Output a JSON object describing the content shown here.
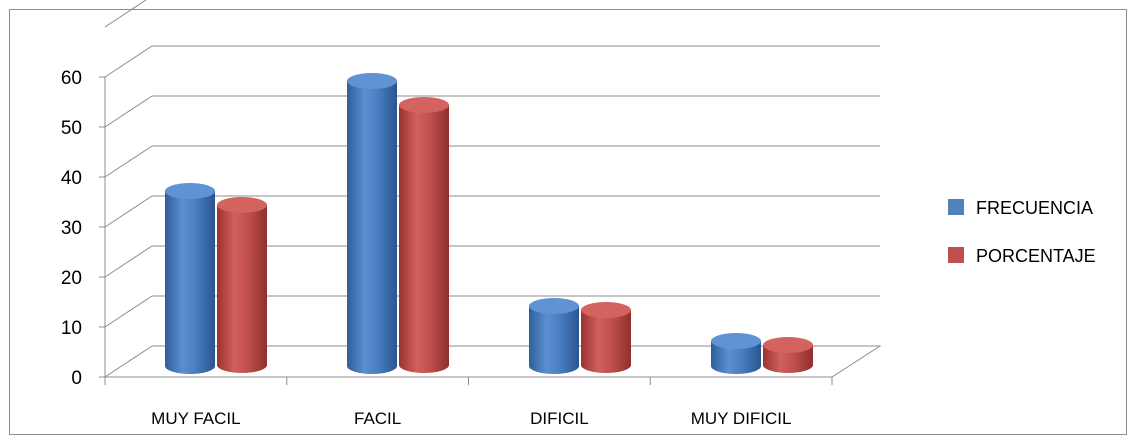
{
  "chart_data": {
    "type": "bar",
    "categories": [
      "MUY FACIL",
      "FACIL",
      "DIFICIL",
      "MUY DIFICIL"
    ],
    "series": [
      {
        "name": "FRECUENCIA",
        "values": [
          35,
          57,
          12,
          5
        ],
        "color": "#4F81BD"
      },
      {
        "name": "PORCENTAJE",
        "values": [
          32,
          52,
          11,
          4
        ],
        "color": "#C0504D"
      }
    ],
    "ylim": [
      0,
      60
    ],
    "yticks": [
      0,
      10,
      20,
      30,
      40,
      50,
      60
    ],
    "grid": true,
    "legend": "right"
  }
}
